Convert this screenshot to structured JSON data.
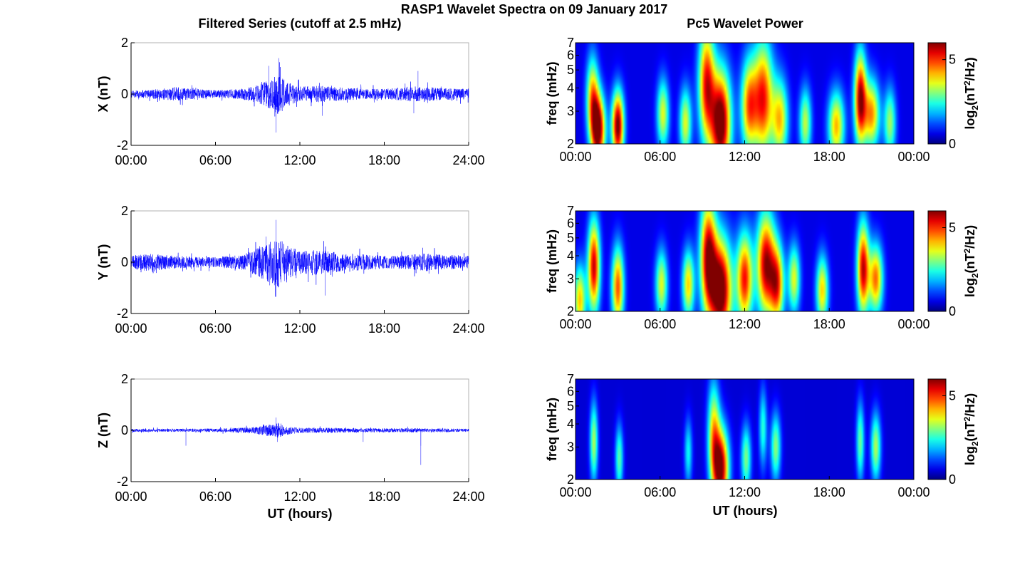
{
  "title": "RASP1 Wavelet Spectra on 09 January 2017",
  "left_column_title": "Filtered Series (cutoff at 2.5 mHz)",
  "right_column_title": "Pc5 Wavelet Power",
  "time_ticks_left": [
    "00:00",
    "06:00",
    "12:00",
    "18:00",
    "24:00"
  ],
  "time_ticks_right": [
    "00:00",
    "06:00",
    "12:00",
    "18:00",
    "00:00"
  ],
  "xlabel": "UT (hours)",
  "colors": {
    "trace": "#0000ff",
    "axis": "#000000",
    "frame": "#b0b0b0"
  },
  "chart_data": [
    {
      "type": "line",
      "component": "X",
      "ylabel": "X (nT)",
      "yticks": [
        "2",
        "0",
        "-2"
      ],
      "ylim": [
        -2,
        2
      ],
      "xlim": [
        0,
        24
      ],
      "noise_profile": {
        "hours": [
          0,
          2,
          3,
          5,
          6,
          8,
          9,
          10,
          10.5,
          11,
          12,
          13,
          14,
          15,
          17,
          18,
          19,
          20,
          21,
          22,
          24
        ],
        "amplitude_nT": [
          0.13,
          0.2,
          0.28,
          0.18,
          0.15,
          0.22,
          0.35,
          0.6,
          0.85,
          0.5,
          0.3,
          0.33,
          0.3,
          0.25,
          0.2,
          0.2,
          0.25,
          0.3,
          0.28,
          0.24,
          0.2
        ]
      },
      "spikes": [
        {
          "hour": 10.3,
          "value": -1.5
        },
        {
          "hour": 10.5,
          "value": 1.4
        },
        {
          "hour": 9.8,
          "value": 1.1
        },
        {
          "hour": 20.4,
          "value": 0.9
        },
        {
          "hour": 20.1,
          "value": -0.75
        },
        {
          "hour": 13.6,
          "value": -0.85
        }
      ]
    },
    {
      "type": "line",
      "component": "Y",
      "ylabel": "Y (nT)",
      "yticks": [
        "2",
        "0",
        "-2"
      ],
      "ylim": [
        -2,
        2
      ],
      "xlim": [
        0,
        24
      ],
      "noise_profile": {
        "hours": [
          0,
          1,
          2,
          3,
          5,
          6,
          8,
          9,
          10,
          10.5,
          11,
          12,
          13,
          14,
          15,
          17,
          18,
          19,
          20,
          21,
          22,
          24
        ],
        "amplitude_nT": [
          0.25,
          0.35,
          0.3,
          0.25,
          0.2,
          0.2,
          0.3,
          0.55,
          0.85,
          1.0,
          0.7,
          0.45,
          0.5,
          0.45,
          0.35,
          0.3,
          0.25,
          0.25,
          0.3,
          0.35,
          0.3,
          0.25
        ]
      },
      "spikes": [
        {
          "hour": 10.3,
          "value": 1.65
        },
        {
          "hour": 10.3,
          "value": -1.35
        },
        {
          "hour": 13.8,
          "value": -1.3
        },
        {
          "hour": 9.6,
          "value": 1.0
        }
      ]
    },
    {
      "type": "line",
      "component": "Z",
      "ylabel": "Z (nT)",
      "yticks": [
        "2",
        "0",
        "-2"
      ],
      "ylim": [
        -2,
        2
      ],
      "xlim": [
        0,
        24
      ],
      "noise_profile": {
        "hours": [
          0,
          3,
          6,
          8,
          9,
          10,
          10.5,
          11,
          12,
          14,
          16,
          18,
          20,
          22,
          24
        ],
        "amplitude_nT": [
          0.06,
          0.06,
          0.07,
          0.1,
          0.15,
          0.25,
          0.3,
          0.18,
          0.1,
          0.1,
          0.08,
          0.08,
          0.08,
          0.07,
          0.06
        ]
      },
      "spikes": [
        {
          "hour": 20.6,
          "value": -1.35
        },
        {
          "hour": 3.9,
          "value": -0.6
        },
        {
          "hour": 10.4,
          "value": -0.45
        },
        {
          "hour": 10.3,
          "value": 0.5
        },
        {
          "hour": 16.5,
          "value": -0.45
        },
        {
          "hour": 20.6,
          "value": -0.6
        }
      ]
    },
    {
      "type": "heatmap",
      "component": "X",
      "ylabel": "freq (mHz)",
      "yticks": [
        "7",
        "6",
        "5",
        "4",
        "3",
        "2"
      ],
      "ylim": [
        2,
        7
      ],
      "yscale": "log",
      "xlim": [
        0,
        24
      ],
      "colorbar_label": "log2(nT2/Hz)",
      "colorbar_ticks": [
        "5",
        "0"
      ],
      "colorbar_range": [
        0,
        6
      ],
      "colormap": "jet",
      "background_level": 0.6,
      "blobs": [
        {
          "t": 1.6,
          "f": 2.4,
          "power": 5.8,
          "width_h": 0.35,
          "freq_spread": 0.3
        },
        {
          "t": 3.0,
          "f": 2.5,
          "power": 5.6,
          "width_h": 0.3,
          "freq_spread": 0.3
        },
        {
          "t": 10.3,
          "f": 2.6,
          "power": 6.0,
          "width_h": 0.5,
          "freq_spread": 0.45
        },
        {
          "t": 9.3,
          "f": 4.2,
          "power": 4.6,
          "width_h": 0.4,
          "freq_spread": 0.5
        },
        {
          "t": 13.3,
          "f": 3.5,
          "power": 4.6,
          "width_h": 0.5,
          "freq_spread": 0.5
        },
        {
          "t": 12.3,
          "f": 3.2,
          "power": 3.8,
          "width_h": 0.4,
          "freq_spread": 0.4
        },
        {
          "t": 14.5,
          "f": 2.7,
          "power": 3.4,
          "width_h": 0.4,
          "freq_spread": 0.35
        },
        {
          "t": 18.5,
          "f": 2.5,
          "power": 3.6,
          "width_h": 0.4,
          "freq_spread": 0.3
        },
        {
          "t": 20.2,
          "f": 3.5,
          "power": 5.2,
          "width_h": 0.3,
          "freq_spread": 0.4
        },
        {
          "t": 21.0,
          "f": 2.9,
          "power": 3.8,
          "width_h": 0.4,
          "freq_spread": 0.3
        },
        {
          "t": 1.2,
          "f": 3.6,
          "power": 3.4,
          "width_h": 0.3,
          "freq_spread": 0.35
        },
        {
          "t": 6.2,
          "f": 2.9,
          "power": 3.0,
          "width_h": 0.3,
          "freq_spread": 0.3
        },
        {
          "t": 7.8,
          "f": 2.6,
          "power": 3.0,
          "width_h": 0.3,
          "freq_spread": 0.3
        },
        {
          "t": 16.3,
          "f": 2.6,
          "power": 2.8,
          "width_h": 0.3,
          "freq_spread": 0.3
        },
        {
          "t": 22.3,
          "f": 2.6,
          "power": 2.6,
          "width_h": 0.3,
          "freq_spread": 0.3
        }
      ]
    },
    {
      "type": "heatmap",
      "component": "Y",
      "ylabel": "freq (mHz)",
      "yticks": [
        "7",
        "6",
        "5",
        "4",
        "3",
        "2"
      ],
      "ylim": [
        2,
        7
      ],
      "yscale": "log",
      "xlim": [
        0,
        24
      ],
      "colorbar_label": "log2(nT2/Hz)",
      "colorbar_ticks": [
        "5",
        "0"
      ],
      "colorbar_range": [
        0,
        6
      ],
      "colormap": "jet",
      "background_level": 0.6,
      "blobs": [
        {
          "t": 1.3,
          "f": 3.5,
          "power": 5.0,
          "width_h": 0.3,
          "freq_spread": 0.4
        },
        {
          "t": 0.3,
          "f": 2.3,
          "power": 3.5,
          "width_h": 0.3,
          "freq_spread": 0.3
        },
        {
          "t": 3.0,
          "f": 2.7,
          "power": 4.2,
          "width_h": 0.3,
          "freq_spread": 0.35
        },
        {
          "t": 10.3,
          "f": 2.6,
          "power": 6.0,
          "width_h": 0.55,
          "freq_spread": 0.45
        },
        {
          "t": 9.4,
          "f": 4.0,
          "power": 5.0,
          "width_h": 0.4,
          "freq_spread": 0.5
        },
        {
          "t": 12.0,
          "f": 3.0,
          "power": 4.6,
          "width_h": 0.4,
          "freq_spread": 0.4
        },
        {
          "t": 13.5,
          "f": 3.6,
          "power": 5.2,
          "width_h": 0.45,
          "freq_spread": 0.45
        },
        {
          "t": 14.3,
          "f": 2.8,
          "power": 4.2,
          "width_h": 0.35,
          "freq_spread": 0.35
        },
        {
          "t": 17.5,
          "f": 2.6,
          "power": 3.4,
          "width_h": 0.3,
          "freq_spread": 0.3
        },
        {
          "t": 20.4,
          "f": 3.4,
          "power": 5.0,
          "width_h": 0.3,
          "freq_spread": 0.4
        },
        {
          "t": 21.3,
          "f": 3.0,
          "power": 4.0,
          "width_h": 0.35,
          "freq_spread": 0.3
        },
        {
          "t": 6.1,
          "f": 2.8,
          "power": 3.0,
          "width_h": 0.3,
          "freq_spread": 0.3
        },
        {
          "t": 8.0,
          "f": 2.8,
          "power": 3.4,
          "width_h": 0.3,
          "freq_spread": 0.3
        },
        {
          "t": 15.5,
          "f": 3.0,
          "power": 3.0,
          "width_h": 0.3,
          "freq_spread": 0.3
        }
      ]
    },
    {
      "type": "heatmap",
      "component": "Z",
      "ylabel": "freq (mHz)",
      "yticks": [
        "7",
        "6",
        "5",
        "4",
        "3",
        "2"
      ],
      "ylim": [
        2,
        7
      ],
      "yscale": "log",
      "xlim": [
        0,
        24
      ],
      "colorbar_label": "log2(nT2/Hz)",
      "colorbar_ticks": [
        "5",
        "0"
      ],
      "colorbar_range": [
        0,
        6
      ],
      "colormap": "jet",
      "background_level": 0.5,
      "blobs": [
        {
          "t": 10.3,
          "f": 2.3,
          "power": 5.6,
          "width_h": 0.4,
          "freq_spread": 0.35
        },
        {
          "t": 9.8,
          "f": 3.6,
          "power": 3.2,
          "width_h": 0.3,
          "freq_spread": 0.45
        },
        {
          "t": 1.3,
          "f": 3.2,
          "power": 2.8,
          "width_h": 0.2,
          "freq_spread": 0.35
        },
        {
          "t": 3.1,
          "f": 2.6,
          "power": 2.3,
          "width_h": 0.2,
          "freq_spread": 0.3
        },
        {
          "t": 8.0,
          "f": 2.8,
          "power": 1.8,
          "width_h": 0.2,
          "freq_spread": 0.3
        },
        {
          "t": 12.1,
          "f": 2.6,
          "power": 2.5,
          "width_h": 0.25,
          "freq_spread": 0.3
        },
        {
          "t": 14.2,
          "f": 3.0,
          "power": 2.6,
          "width_h": 0.25,
          "freq_spread": 0.3
        },
        {
          "t": 20.2,
          "f": 3.2,
          "power": 2.4,
          "width_h": 0.2,
          "freq_spread": 0.35
        },
        {
          "t": 21.3,
          "f": 3.0,
          "power": 2.8,
          "width_h": 0.25,
          "freq_spread": 0.3
        },
        {
          "t": 13.3,
          "f": 3.8,
          "power": 2.0,
          "width_h": 0.2,
          "freq_spread": 0.35
        }
      ]
    }
  ]
}
